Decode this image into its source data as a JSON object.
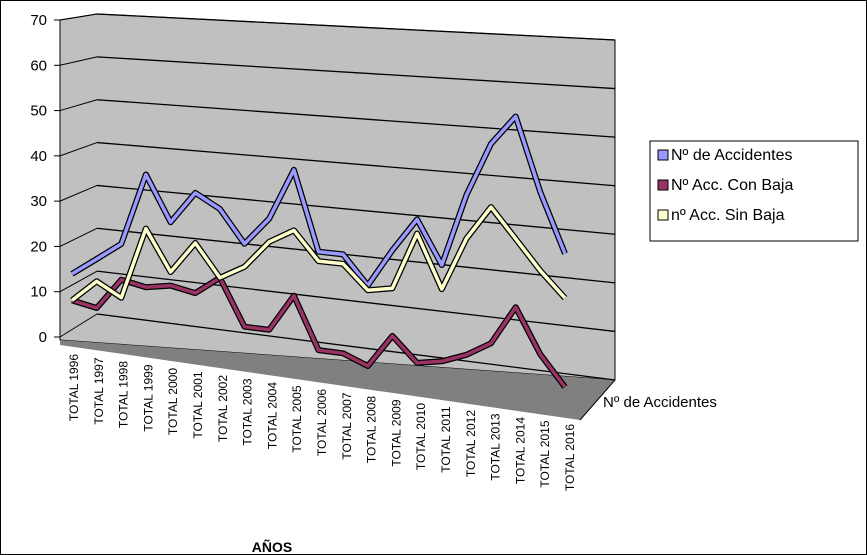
{
  "chart_data": {
    "type": "line",
    "title": "",
    "xlabel": "AÑOS",
    "ylabel": "",
    "depth_label": "Nº de Accidentes",
    "ylim": [
      0,
      70
    ],
    "y_ticks": [
      0,
      10,
      20,
      30,
      40,
      50,
      60,
      70
    ],
    "grid": true,
    "legend_position": "right",
    "categories": [
      "TOTAL 1996",
      "TOTAL 1997",
      "TOTAL 1998",
      "TOTAL 1999",
      "TOTAL 2000",
      "TOTAL 2001",
      "TOTAL 2002",
      "TOTAL 2003",
      "TOTAL 2004",
      "TOTAL 2005",
      "TOTAL 2006",
      "TOTAL 2007",
      "TOTAL 2008",
      "TOTAL 2009",
      "TOTAL 2010",
      "TOTAL 2011",
      "TOTAL 2012",
      "TOTAL 2013",
      "TOTAL 2014",
      "TOTAL 2015",
      "TOTAL 2016"
    ],
    "series": [
      {
        "name": "Nº de Accidentes",
        "color": "#9999ff",
        "values": [
          12,
          16,
          20,
          36,
          26,
          33,
          30,
          23,
          29,
          40,
          23,
          23,
          17,
          25,
          32,
          23,
          38,
          49,
          55,
          40,
          28
        ]
      },
      {
        "name": "Nº Acc. Con Baja",
        "color": "#993366",
        "values": [
          6,
          5,
          12,
          11,
          12,
          11,
          15,
          5,
          5,
          13,
          2,
          2,
          0,
          7,
          2,
          3,
          5,
          8,
          16,
          7,
          1
        ]
      },
      {
        "name": "nº Acc. Sin Baja",
        "color": "#ffffcc",
        "values": [
          6,
          11,
          8,
          24,
          15,
          22,
          15,
          18,
          24,
          27,
          21,
          21,
          16,
          17,
          29,
          18,
          29,
          36,
          30,
          24,
          19
        ]
      }
    ]
  }
}
